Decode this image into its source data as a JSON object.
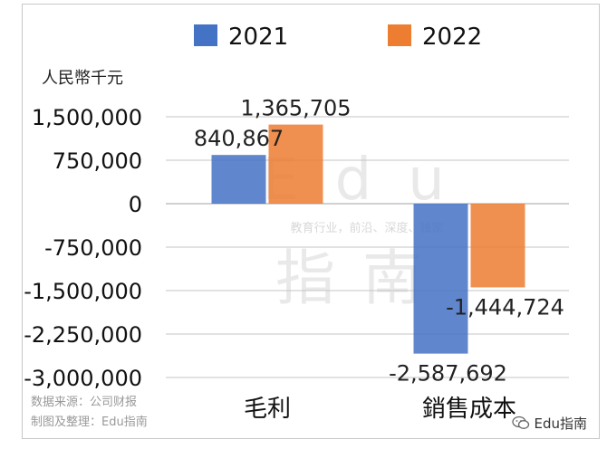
{
  "chart_data": {
    "type": "bar",
    "categories": [
      "毛利",
      "銷售成本"
    ],
    "series": [
      {
        "name": "2021",
        "color": "#4472c4",
        "values": [
          840867,
          -2587692
        ]
      },
      {
        "name": "2022",
        "color": "#ed7d31",
        "values": [
          1365705,
          -1444724
        ]
      }
    ],
    "data_labels": [
      [
        "840,867",
        "-2,587,692"
      ],
      [
        "1,365,705",
        "-1,444,724"
      ]
    ],
    "ylim": [
      -3000000,
      1500000
    ],
    "yticks": [
      1500000,
      750000,
      0,
      -750000,
      -1500000,
      -2250000,
      -3000000
    ],
    "ytick_labels": [
      "1,500,000",
      "750,000",
      "0",
      "-750,000",
      "-1,500,000",
      "-2,250,000",
      "-3,000,000"
    ],
    "ylabel": "人民幣千元",
    "grid": true,
    "legend": "top"
  },
  "watermark": {
    "brand": "Edu",
    "sub": "教育行业，前沿、深度、独家",
    "name": "指南"
  },
  "footer": {
    "source": "数据来源：公司财报",
    "made_by": "制图及整理：Edu指南"
  },
  "brand_badge": {
    "icon": "wechat-icon",
    "text": "Edu指南"
  }
}
